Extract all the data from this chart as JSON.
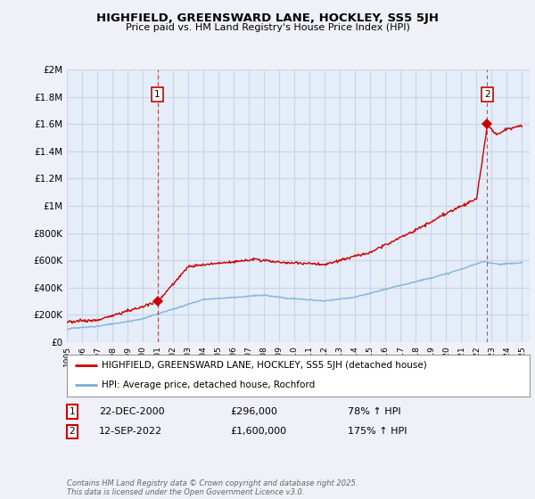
{
  "title": "HIGHFIELD, GREENSWARD LANE, HOCKLEY, SS5 5JH",
  "subtitle": "Price paid vs. HM Land Registry's House Price Index (HPI)",
  "legend_label_red": "HIGHFIELD, GREENSWARD LANE, HOCKLEY, SS5 5JH (detached house)",
  "legend_label_blue": "HPI: Average price, detached house, Rochford",
  "annotation1_date": "22-DEC-2000",
  "annotation1_price": "£296,000",
  "annotation1_hpi": "78% ↑ HPI",
  "annotation2_date": "12-SEP-2022",
  "annotation2_price": "£1,600,000",
  "annotation2_hpi": "175% ↑ HPI",
  "footer": "Contains HM Land Registry data © Crown copyright and database right 2025.\nThis data is licensed under the Open Government Licence v3.0.",
  "ylabel_ticks": [
    0,
    200000,
    400000,
    600000,
    800000,
    1000000,
    1200000,
    1400000,
    1600000,
    1800000,
    2000000
  ],
  "ylabel_labels": [
    "£0",
    "£200K",
    "£400K",
    "£600K",
    "£800K",
    "£1M",
    "£1.2M",
    "£1.4M",
    "£1.6M",
    "£1.8M",
    "£2M"
  ],
  "color_red": "#cc0000",
  "color_blue": "#7aaed6",
  "color_grid": "#c8d4e8",
  "bg_color": "#f0f0f8",
  "plot_bg": "#e4edf8",
  "sale1_year": 2000.97,
  "sale1_price": 296000,
  "sale2_year": 2022.7,
  "sale2_price": 1600000,
  "xmin": 1995.0,
  "xmax": 2025.5,
  "ymin": 0,
  "ymax": 2000000
}
